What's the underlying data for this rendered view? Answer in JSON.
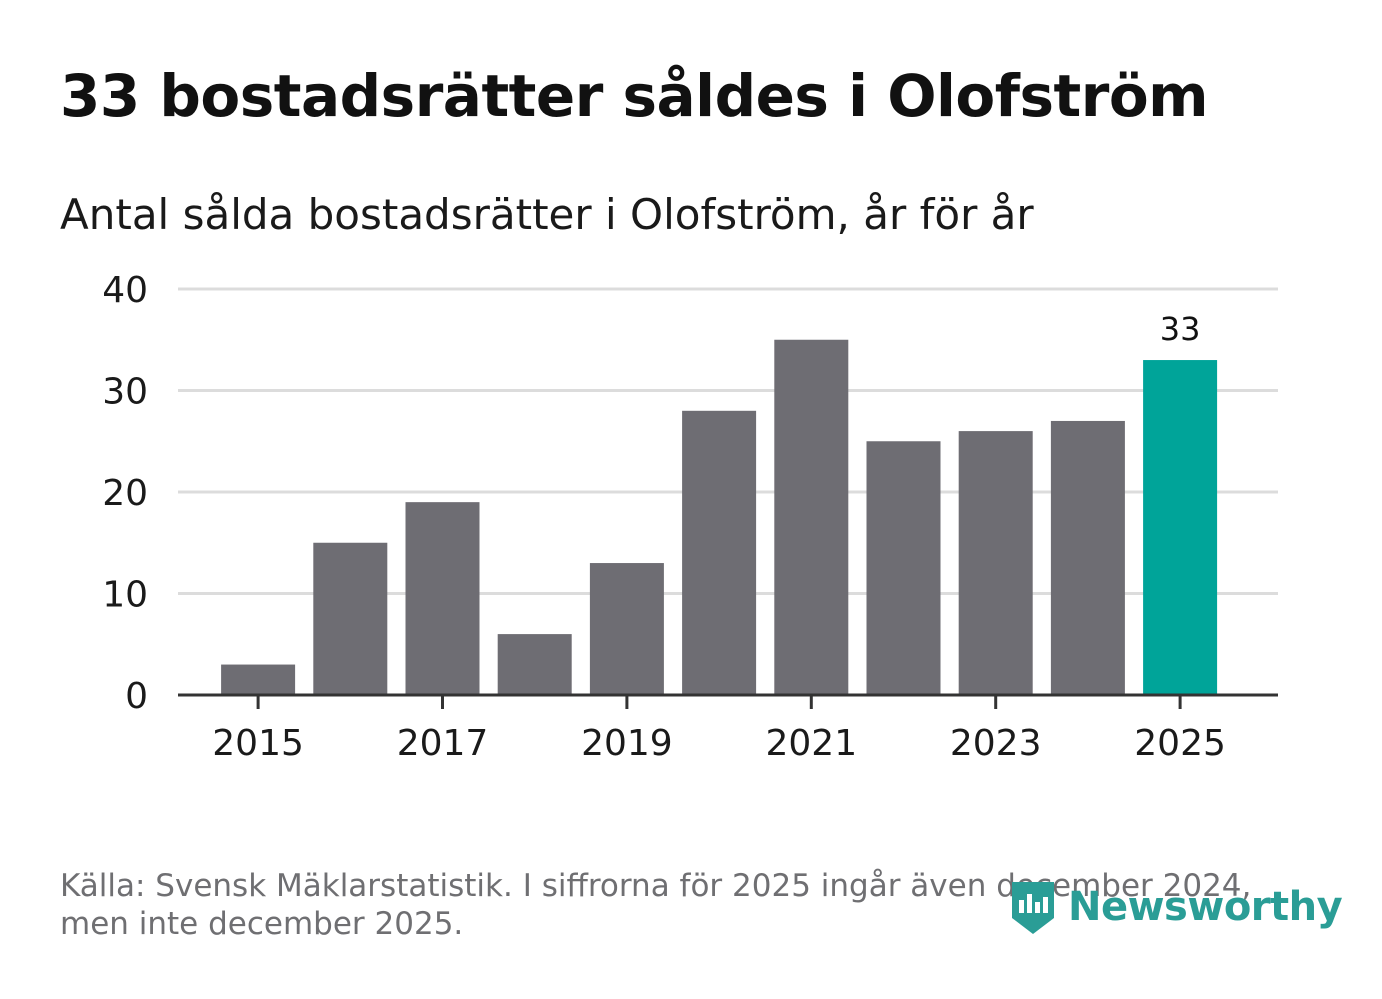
{
  "title": "33 bostadsrätter såldes i Olofström",
  "subtitle": "Antal sålda bostadsrätter i Olofström, år för år",
  "footer": {
    "line1": "Källa: Svensk Mäklarstatistik. I siffrorna för 2025 ingår även december 2024,",
    "line2": "men inte december 2025."
  },
  "brand": {
    "name": "Newsworthy",
    "icon": "newsworthy-logo-icon"
  },
  "colors": {
    "bar": "#6e6d73",
    "highlight": "#00a499",
    "grid": "#dcdcdc",
    "axis": "#333333",
    "text": "#1a1a1a",
    "brand": "#2a9d96"
  },
  "chart_data": {
    "type": "bar",
    "title": "33 bostadsrätter såldes i Olofström",
    "subtitle": "Antal sålda bostadsrätter i Olofström, år för år",
    "categories": [
      "2015",
      "2016",
      "2017",
      "2018",
      "2019",
      "2020",
      "2021",
      "2022",
      "2023",
      "2024",
      "2025"
    ],
    "values": [
      3,
      15,
      19,
      6,
      13,
      28,
      35,
      25,
      26,
      27,
      33
    ],
    "highlight_index": 10,
    "data_labels": [
      {
        "index": 10,
        "text": "33"
      }
    ],
    "x_tick_labels": [
      "2015",
      "2017",
      "2019",
      "2021",
      "2023",
      "2025"
    ],
    "y_ticks": [
      0,
      10,
      20,
      30,
      40
    ],
    "ylim": [
      0,
      40
    ],
    "xlabel": "",
    "ylabel": "",
    "grid": true,
    "legend": "none"
  }
}
